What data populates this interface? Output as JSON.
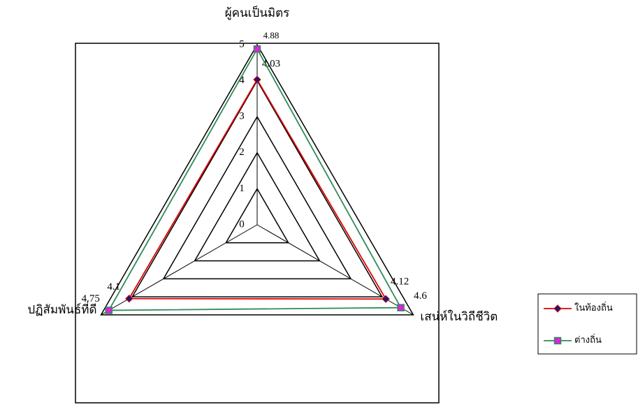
{
  "chart_data": {
    "type": "radar",
    "categories": [
      "ผู้คนเป็นมิตร",
      "เสน่ห์ในวิถีชีวิต",
      "ปฏิสัมพันธ์ที่ดี"
    ],
    "series": [
      {
        "name": "ในท้องถิ่น",
        "color": "#e00000",
        "marker_color": "#1a1a7a",
        "marker": "diamond",
        "values": [
          4.03,
          4.12,
          4.1
        ]
      },
      {
        "name": "ต่างถิ่น",
        "color": "#2e8b57",
        "marker_color": "#e020e0",
        "marker": "square",
        "values": [
          4.88,
          4.6,
          4.75
        ]
      }
    ],
    "rlim": [
      0,
      5
    ],
    "rticks": [
      0,
      1,
      2,
      3,
      4,
      5
    ],
    "grid": true,
    "legend": "right"
  }
}
